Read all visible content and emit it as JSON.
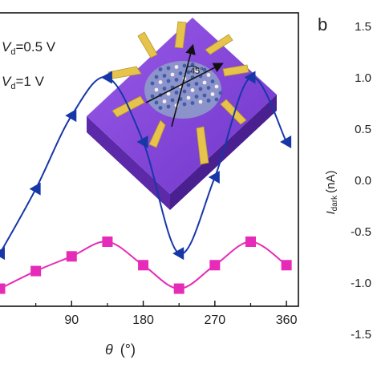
{
  "chart_data": [
    {
      "type": "line",
      "xlabel_symbol": "θ",
      "xlabel_unit": "(°)",
      "x_ticks": [
        "90",
        "180",
        "270",
        "360"
      ],
      "xlim": [
        0,
        375
      ],
      "ylim": [
        0,
        1
      ],
      "legend": [
        {
          "symbol": "V",
          "subscript": "d",
          "value": "=0.5 V",
          "marker": "square",
          "color": "#e62bb8"
        },
        {
          "symbol": "V",
          "subscript": "d",
          "value": "=1 V",
          "marker": "triangle-left",
          "color": "#1737a8"
        }
      ],
      "series": [
        {
          "marker": "triangle-left",
          "color": "#1737a8",
          "x": [
            0,
            45,
            90,
            135,
            180,
            225,
            270,
            315,
            360
          ],
          "y": [
            0.18,
            0.4,
            0.65,
            0.78,
            0.56,
            0.18,
            0.44,
            0.78,
            0.56
          ]
        },
        {
          "marker": "square",
          "color": "#e62bb8",
          "x": [
            0,
            45,
            90,
            135,
            180,
            225,
            270,
            315,
            360
          ],
          "y": [
            0.06,
            0.12,
            0.17,
            0.22,
            0.14,
            0.06,
            0.14,
            0.22,
            0.14
          ]
        }
      ],
      "inset_annotation": "45°"
    },
    {
      "type": "line",
      "panel_label": "b",
      "ylabel_symbol": "I",
      "ylabel_subscript": "dark",
      "ylabel_unit": "(nA)",
      "y_ticks": [
        "1.5",
        "1.0",
        "0.5",
        "0.0",
        "-0.5",
        "-1.0",
        "-1.5"
      ]
    }
  ],
  "colors": {
    "substrate": "#7a3fd0",
    "electrode": "#e6c34a",
    "frame": "#111111"
  }
}
